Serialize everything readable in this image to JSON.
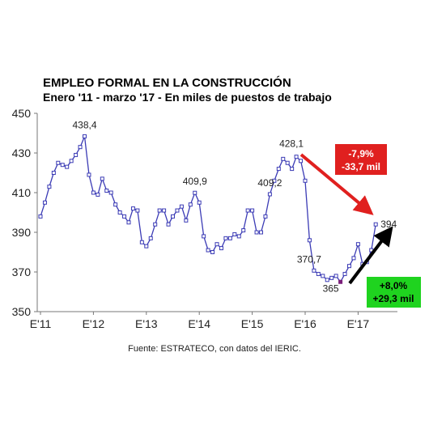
{
  "chart_data": {
    "type": "line",
    "title": "EMPLEO FORMAL EN LA CONSTRUCCIÓN",
    "subtitle": "Enero '11 - marzo '17 - En miles de puestos de trabajo",
    "source": "Fuente: ESTRATECO, con datos del IERIC.",
    "x_tick_labels": [
      "E'11",
      "E'12",
      "E'13",
      "E'14",
      "E'15",
      "E'16",
      "E'17"
    ],
    "ylim": [
      350,
      450
    ],
    "y_ticks": [
      350,
      370,
      390,
      410,
      430,
      450
    ],
    "grid": false,
    "series": [
      {
        "color": "#3b3bb5",
        "values": [
          398,
          405,
          413,
          420,
          425,
          424,
          423,
          426,
          429,
          433,
          438.4,
          419,
          410,
          409,
          417,
          411,
          410,
          404,
          400,
          398,
          395,
          402,
          401,
          385,
          383,
          387,
          394,
          401,
          401,
          394,
          398,
          401,
          403,
          396,
          404,
          409.9,
          405,
          388,
          381,
          380,
          384,
          382,
          387,
          387,
          389,
          388,
          391,
          401,
          401,
          390,
          390,
          398,
          409.2,
          416,
          422,
          427,
          425,
          422,
          428.1,
          426,
          416,
          386,
          370.7,
          369,
          368,
          366,
          367,
          368,
          365,
          369,
          373,
          377,
          384,
          374,
          375,
          381,
          394
        ]
      }
    ],
    "highlight_point": {
      "index": 68,
      "color": "#7a1f7a"
    },
    "data_labels": [
      {
        "index": 10,
        "text": "438,4"
      },
      {
        "index": 35,
        "text": "409,9"
      },
      {
        "index": 52,
        "text": "409,2"
      },
      {
        "index": 58,
        "text": "428,1"
      },
      {
        "index": 62,
        "text": "370,7"
      },
      {
        "index": 68,
        "text": "365"
      },
      {
        "index": 76,
        "text": "394"
      }
    ],
    "annotations": [
      {
        "line1": "-7,9%",
        "line2": "-33,7 mil",
        "box_color": "#e0201f",
        "text_color": "#ffffff",
        "arrow_color": "#e0201f"
      },
      {
        "line1": "+8,0%",
        "line2": "+29,3 mil",
        "box_color": "#1fd31f",
        "text_color": "#000000",
        "arrow_color": "#000000"
      }
    ]
  }
}
